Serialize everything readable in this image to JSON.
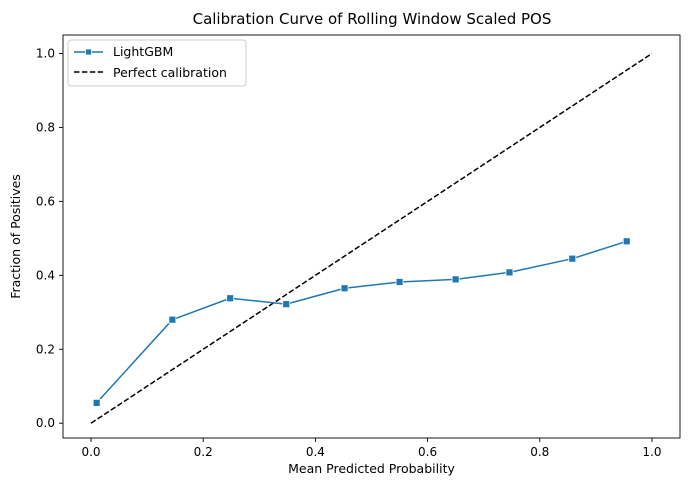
{
  "chart_data": {
    "type": "line",
    "title": "Calibration Curve of Rolling Window Scaled POS",
    "xlabel": "Mean Predicted Probability",
    "ylabel": "Fraction of Positives",
    "xlim": [
      -0.05,
      1.05
    ],
    "ylim": [
      -0.04,
      1.05
    ],
    "xticks": [
      0.0,
      0.2,
      0.4,
      0.6,
      0.8,
      1.0
    ],
    "xtick_labels": [
      "0.0",
      "0.2",
      "0.4",
      "0.6",
      "0.8",
      "1.0"
    ],
    "yticks": [
      0.0,
      0.2,
      0.4,
      0.6,
      0.8,
      1.0
    ],
    "ytick_labels": [
      "0.0",
      "0.2",
      "0.4",
      "0.6",
      "0.8",
      "1.0"
    ],
    "grid": false,
    "legend_position": "top-left",
    "series": [
      {
        "name": "LightGBM",
        "color": "#1f77b4",
        "marker": "square",
        "linestyle": "solid",
        "x": [
          0.01,
          0.145,
          0.248,
          0.348,
          0.452,
          0.55,
          0.65,
          0.746,
          0.858,
          0.955
        ],
        "y": [
          0.055,
          0.28,
          0.338,
          0.322,
          0.365,
          0.382,
          0.389,
          0.408,
          0.445,
          0.492
        ]
      },
      {
        "name": "Perfect calibration",
        "color": "#000000",
        "marker": "none",
        "linestyle": "dashed",
        "x": [
          0.0,
          1.0
        ],
        "y": [
          0.0,
          1.0
        ]
      }
    ]
  }
}
